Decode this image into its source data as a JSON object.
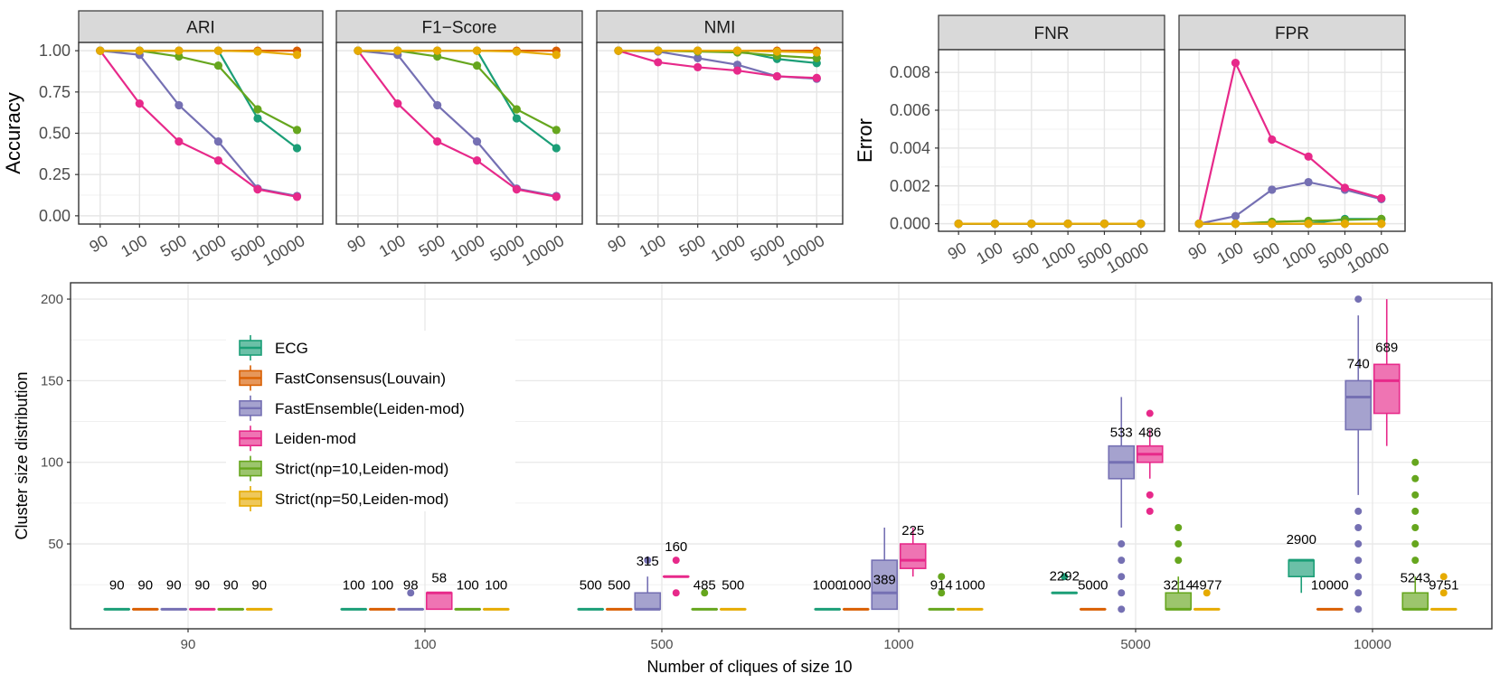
{
  "colors": {
    "ECG": "#1b9e77",
    "FastConsensus(Louvain)": "#d95f02",
    "FastEnsemble(Leiden-mod)": "#7570b3",
    "Leiden-mod": "#e7298a",
    "Strict(np=10,Leiden-mod)": "#66a61e",
    "Strict(np=50,Leiden-mod)": "#e6ab02"
  },
  "methods": [
    "ECG",
    "FastConsensus(Louvain)",
    "FastEnsemble(Leiden-mod)",
    "Leiden-mod",
    "Strict(np=10,Leiden-mod)",
    "Strict(np=50,Leiden-mod)"
  ],
  "chart_data": [
    {
      "type": "line",
      "title": "ARI",
      "ylabel": "Accuracy",
      "ylim": [
        -0.05,
        1.05
      ],
      "yticks": [
        0,
        0.25,
        0.5,
        0.75,
        1.0
      ],
      "ytick_labels": [
        "0.00",
        "0.25",
        "0.50",
        "0.75",
        "1.00"
      ],
      "categories": [
        "90",
        "100",
        "500",
        "1000",
        "5000",
        "10000"
      ],
      "series": [
        {
          "name": "ECG",
          "values": [
            1.0,
            1.0,
            1.0,
            1.0,
            0.59,
            0.41
          ]
        },
        {
          "name": "FastConsensus(Louvain)",
          "values": [
            1.0,
            1.0,
            1.0,
            1.0,
            1.0,
            1.0
          ]
        },
        {
          "name": "FastEnsemble(Leiden-mod)",
          "values": [
            1.0,
            0.975,
            0.67,
            0.45,
            0.165,
            0.12
          ]
        },
        {
          "name": "Leiden-mod",
          "values": [
            1.0,
            0.68,
            0.45,
            0.335,
            0.16,
            0.115
          ]
        },
        {
          "name": "Strict(np=10,Leiden-mod)",
          "values": [
            1.0,
            1.0,
            0.965,
            0.91,
            0.645,
            0.52
          ]
        },
        {
          "name": "Strict(np=50,Leiden-mod)",
          "values": [
            1.0,
            1.0,
            1.0,
            1.0,
            0.995,
            0.975
          ]
        }
      ]
    },
    {
      "type": "line",
      "title": "F1−Score",
      "ylabel": "Accuracy",
      "ylim": [
        -0.05,
        1.05
      ],
      "categories": [
        "90",
        "100",
        "500",
        "1000",
        "5000",
        "10000"
      ],
      "series": [
        {
          "name": "ECG",
          "values": [
            1.0,
            1.0,
            1.0,
            1.0,
            0.59,
            0.41
          ]
        },
        {
          "name": "FastConsensus(Louvain)",
          "values": [
            1.0,
            1.0,
            1.0,
            1.0,
            1.0,
            1.0
          ]
        },
        {
          "name": "FastEnsemble(Leiden-mod)",
          "values": [
            1.0,
            0.975,
            0.67,
            0.45,
            0.165,
            0.12
          ]
        },
        {
          "name": "Leiden-mod",
          "values": [
            1.0,
            0.68,
            0.45,
            0.335,
            0.16,
            0.115
          ]
        },
        {
          "name": "Strict(np=10,Leiden-mod)",
          "values": [
            1.0,
            1.0,
            0.965,
            0.91,
            0.645,
            0.52
          ]
        },
        {
          "name": "Strict(np=50,Leiden-mod)",
          "values": [
            1.0,
            1.0,
            1.0,
            1.0,
            0.995,
            0.975
          ]
        }
      ]
    },
    {
      "type": "line",
      "title": "NMI",
      "ylabel": "Accuracy",
      "ylim": [
        -0.05,
        1.05
      ],
      "categories": [
        "90",
        "100",
        "500",
        "1000",
        "5000",
        "10000"
      ],
      "series": [
        {
          "name": "ECG",
          "values": [
            1.0,
            1.0,
            1.0,
            1.0,
            0.95,
            0.925
          ]
        },
        {
          "name": "FastConsensus(Louvain)",
          "values": [
            1.0,
            1.0,
            1.0,
            1.0,
            1.0,
            1.0
          ]
        },
        {
          "name": "FastEnsemble(Leiden-mod)",
          "values": [
            1.0,
            0.995,
            0.955,
            0.915,
            0.845,
            0.83
          ]
        },
        {
          "name": "Leiden-mod",
          "values": [
            1.0,
            0.93,
            0.9,
            0.88,
            0.845,
            0.835
          ]
        },
        {
          "name": "Strict(np=10,Leiden-mod)",
          "values": [
            1.0,
            1.0,
            0.995,
            0.99,
            0.97,
            0.955
          ]
        },
        {
          "name": "Strict(np=50,Leiden-mod)",
          "values": [
            1.0,
            1.0,
            1.0,
            1.0,
            0.995,
            0.99
          ]
        }
      ]
    },
    {
      "type": "line",
      "title": "FNR",
      "ylabel": "Error",
      "ylim": [
        -0.0004,
        0.0092
      ],
      "yticks": [
        0,
        0.002,
        0.004,
        0.006,
        0.008
      ],
      "ytick_labels": [
        "0.000",
        "0.002",
        "0.004",
        "0.006",
        "0.008"
      ],
      "categories": [
        "90",
        "100",
        "500",
        "1000",
        "5000",
        "10000"
      ],
      "series": [
        {
          "name": "ECG",
          "values": [
            0,
            0,
            0,
            0,
            0,
            0
          ]
        },
        {
          "name": "FastConsensus(Louvain)",
          "values": [
            0,
            0,
            0,
            0,
            0,
            0
          ]
        },
        {
          "name": "FastEnsemble(Leiden-mod)",
          "values": [
            0,
            0,
            0,
            0,
            0,
            0
          ]
        },
        {
          "name": "Leiden-mod",
          "values": [
            0,
            0,
            0,
            0,
            0,
            0
          ]
        },
        {
          "name": "Strict(np=10,Leiden-mod)",
          "values": [
            0,
            0,
            0,
            0,
            0,
            0
          ]
        },
        {
          "name": "Strict(np=50,Leiden-mod)",
          "values": [
            0,
            0,
            0,
            0,
            0,
            0
          ]
        }
      ]
    },
    {
      "type": "line",
      "title": "FPR",
      "ylabel": "Error",
      "ylim": [
        -0.0004,
        0.0092
      ],
      "categories": [
        "90",
        "100",
        "500",
        "1000",
        "5000",
        "10000"
      ],
      "series": [
        {
          "name": "ECG",
          "values": [
            0,
            0,
            0,
            0,
            0.00025,
            0.00025
          ]
        },
        {
          "name": "FastConsensus(Louvain)",
          "values": [
            0,
            0,
            0,
            0,
            0,
            0
          ]
        },
        {
          "name": "FastEnsemble(Leiden-mod)",
          "values": [
            0,
            0.0004,
            0.0018,
            0.0022,
            0.0018,
            0.0013
          ]
        },
        {
          "name": "Leiden-mod",
          "values": [
            0,
            0.0085,
            0.00445,
            0.00355,
            0.0019,
            0.00135
          ]
        },
        {
          "name": "Strict(np=10,Leiden-mod)",
          "values": [
            0,
            0,
            0.0001,
            0.00015,
            0.0002,
            0.00025
          ]
        },
        {
          "name": "Strict(np=50,Leiden-mod)",
          "values": [
            0,
            0,
            0,
            0,
            0,
            0
          ]
        }
      ]
    },
    {
      "type": "box",
      "xlabel": "Number of cliques of size 10",
      "ylabel": "Cluster size distribution",
      "ylim": [
        -2,
        210
      ],
      "yticks": [
        50,
        100,
        150,
        200
      ],
      "categories": [
        "90",
        "100",
        "500",
        "1000",
        "5000",
        "10000"
      ],
      "groups": [
        {
          "category": "90",
          "boxes": [
            {
              "method": "ECG",
              "min": 10,
              "q1": 10,
              "median": 10,
              "q3": 10,
              "max": 10,
              "outliers": [],
              "count": "90"
            },
            {
              "method": "FastConsensus(Louvain)",
              "min": 10,
              "q1": 10,
              "median": 10,
              "q3": 10,
              "max": 10,
              "outliers": [],
              "count": "90"
            },
            {
              "method": "FastEnsemble(Leiden-mod)",
              "min": 10,
              "q1": 10,
              "median": 10,
              "q3": 10,
              "max": 10,
              "outliers": [],
              "count": "90"
            },
            {
              "method": "Leiden-mod",
              "min": 10,
              "q1": 10,
              "median": 10,
              "q3": 10,
              "max": 10,
              "outliers": [],
              "count": "90"
            },
            {
              "method": "Strict(np=10,Leiden-mod)",
              "min": 10,
              "q1": 10,
              "median": 10,
              "q3": 10,
              "max": 10,
              "outliers": [],
              "count": "90"
            },
            {
              "method": "Strict(np=50,Leiden-mod)",
              "min": 10,
              "q1": 10,
              "median": 10,
              "q3": 10,
              "max": 10,
              "outliers": [],
              "count": "90"
            }
          ]
        },
        {
          "category": "100",
          "boxes": [
            {
              "method": "ECG",
              "min": 10,
              "q1": 10,
              "median": 10,
              "q3": 10,
              "max": 10,
              "outliers": [],
              "count": "100"
            },
            {
              "method": "FastConsensus(Louvain)",
              "min": 10,
              "q1": 10,
              "median": 10,
              "q3": 10,
              "max": 10,
              "outliers": [],
              "count": "100"
            },
            {
              "method": "FastEnsemble(Leiden-mod)",
              "min": 10,
              "q1": 10,
              "median": 10,
              "q3": 10,
              "max": 10,
              "outliers": [
                20
              ],
              "count": "98"
            },
            {
              "method": "Leiden-mod",
              "min": 10,
              "q1": 10,
              "median": 20,
              "q3": 20,
              "max": 20,
              "outliers": [],
              "count": "58"
            },
            {
              "method": "Strict(np=10,Leiden-mod)",
              "min": 10,
              "q1": 10,
              "median": 10,
              "q3": 10,
              "max": 10,
              "outliers": [],
              "count": "100"
            },
            {
              "method": "Strict(np=50,Leiden-mod)",
              "min": 10,
              "q1": 10,
              "median": 10,
              "q3": 10,
              "max": 10,
              "outliers": [],
              "count": "100"
            }
          ]
        },
        {
          "category": "500",
          "boxes": [
            {
              "method": "ECG",
              "min": 10,
              "q1": 10,
              "median": 10,
              "q3": 10,
              "max": 10,
              "outliers": [],
              "count": "500"
            },
            {
              "method": "FastConsensus(Louvain)",
              "min": 10,
              "q1": 10,
              "median": 10,
              "q3": 10,
              "max": 10,
              "outliers": [],
              "count": "500"
            },
            {
              "method": "FastEnsemble(Leiden-mod)",
              "min": 10,
              "q1": 10,
              "median": 10,
              "q3": 20,
              "max": 30,
              "outliers": [
                40
              ],
              "count": "315"
            },
            {
              "method": "Leiden-mod",
              "min": 30,
              "q1": 30,
              "median": 30,
              "q3": 30,
              "max": 30,
              "outliers": [
                20,
                40
              ],
              "count": "160"
            },
            {
              "method": "Strict(np=10,Leiden-mod)",
              "min": 10,
              "q1": 10,
              "median": 10,
              "q3": 10,
              "max": 10,
              "outliers": [
                20
              ],
              "count": "485"
            },
            {
              "method": "Strict(np=50,Leiden-mod)",
              "min": 10,
              "q1": 10,
              "median": 10,
              "q3": 10,
              "max": 10,
              "outliers": [],
              "count": "500"
            }
          ]
        },
        {
          "category": "1000",
          "boxes": [
            {
              "method": "ECG",
              "min": 10,
              "q1": 10,
              "median": 10,
              "q3": 10,
              "max": 10,
              "outliers": [],
              "count": "1000"
            },
            {
              "method": "FastConsensus(Louvain)",
              "min": 10,
              "q1": 10,
              "median": 10,
              "q3": 10,
              "max": 10,
              "outliers": [],
              "count": "1000"
            },
            {
              "method": "FastEnsemble(Leiden-mod)",
              "min": 10,
              "q1": 10,
              "median": 20,
              "q3": 40,
              "max": 60,
              "outliers": [],
              "count": "389"
            },
            {
              "method": "Leiden-mod",
              "min": 30,
              "q1": 35,
              "median": 40,
              "q3": 50,
              "max": 60,
              "outliers": [],
              "count": "225"
            },
            {
              "method": "Strict(np=10,Leiden-mod)",
              "min": 10,
              "q1": 10,
              "median": 10,
              "q3": 10,
              "max": 10,
              "outliers": [
                20,
                30
              ],
              "count": "914"
            },
            {
              "method": "Strict(np=50,Leiden-mod)",
              "min": 10,
              "q1": 10,
              "median": 10,
              "q3": 10,
              "max": 10,
              "outliers": [],
              "count": "1000"
            }
          ]
        },
        {
          "category": "5000",
          "boxes": [
            {
              "method": "ECG",
              "min": 20,
              "q1": 20,
              "median": 20,
              "q3": 20,
              "max": 20,
              "outliers": [
                30
              ],
              "count": "2292"
            },
            {
              "method": "FastConsensus(Louvain)",
              "min": 10,
              "q1": 10,
              "median": 10,
              "q3": 10,
              "max": 10,
              "outliers": [],
              "count": "5000"
            },
            {
              "method": "FastEnsemble(Leiden-mod)",
              "min": 60,
              "q1": 90,
              "median": 100,
              "q3": 110,
              "max": 140,
              "outliers": [
                10,
                20,
                30,
                40,
                50
              ],
              "count": "533"
            },
            {
              "method": "Leiden-mod",
              "min": 90,
              "q1": 100,
              "median": 105,
              "q3": 110,
              "max": 120,
              "outliers": [
                70,
                80,
                130
              ],
              "count": "486"
            },
            {
              "method": "Strict(np=10,Leiden-mod)",
              "min": 10,
              "q1": 10,
              "median": 10,
              "q3": 20,
              "max": 30,
              "outliers": [
                40,
                50,
                60
              ],
              "count": "3214"
            },
            {
              "method": "Strict(np=50,Leiden-mod)",
              "min": 10,
              "q1": 10,
              "median": 10,
              "q3": 10,
              "max": 10,
              "outliers": [
                20
              ],
              "count": "4977"
            }
          ]
        },
        {
          "category": "10000",
          "boxes": [
            {
              "method": "ECG",
              "min": 20,
              "q1": 30,
              "median": 40,
              "q3": 40,
              "max": 40,
              "outliers": [],
              "count": "2900"
            },
            {
              "method": "FastConsensus(Louvain)",
              "min": 10,
              "q1": 10,
              "median": 10,
              "q3": 10,
              "max": 10,
              "outliers": [],
              "count": "10000"
            },
            {
              "method": "FastEnsemble(Leiden-mod)",
              "min": 80,
              "q1": 120,
              "median": 140,
              "q3": 150,
              "max": 190,
              "outliers": [
                10,
                20,
                30,
                40,
                50,
                60,
                70,
                200
              ],
              "count": "740"
            },
            {
              "method": "Leiden-mod",
              "min": 110,
              "q1": 130,
              "median": 150,
              "q3": 160,
              "max": 200,
              "outliers": [],
              "count": "689"
            },
            {
              "method": "Strict(np=10,Leiden-mod)",
              "min": 10,
              "q1": 10,
              "median": 10,
              "q3": 20,
              "max": 30,
              "outliers": [
                40,
                50,
                60,
                70,
                80,
                90,
                100
              ],
              "count": "5243"
            },
            {
              "method": "Strict(np=50,Leiden-mod)",
              "min": 10,
              "q1": 10,
              "median": 10,
              "q3": 10,
              "max": 10,
              "outliers": [
                20,
                30
              ],
              "count": "9751"
            }
          ]
        }
      ]
    }
  ]
}
